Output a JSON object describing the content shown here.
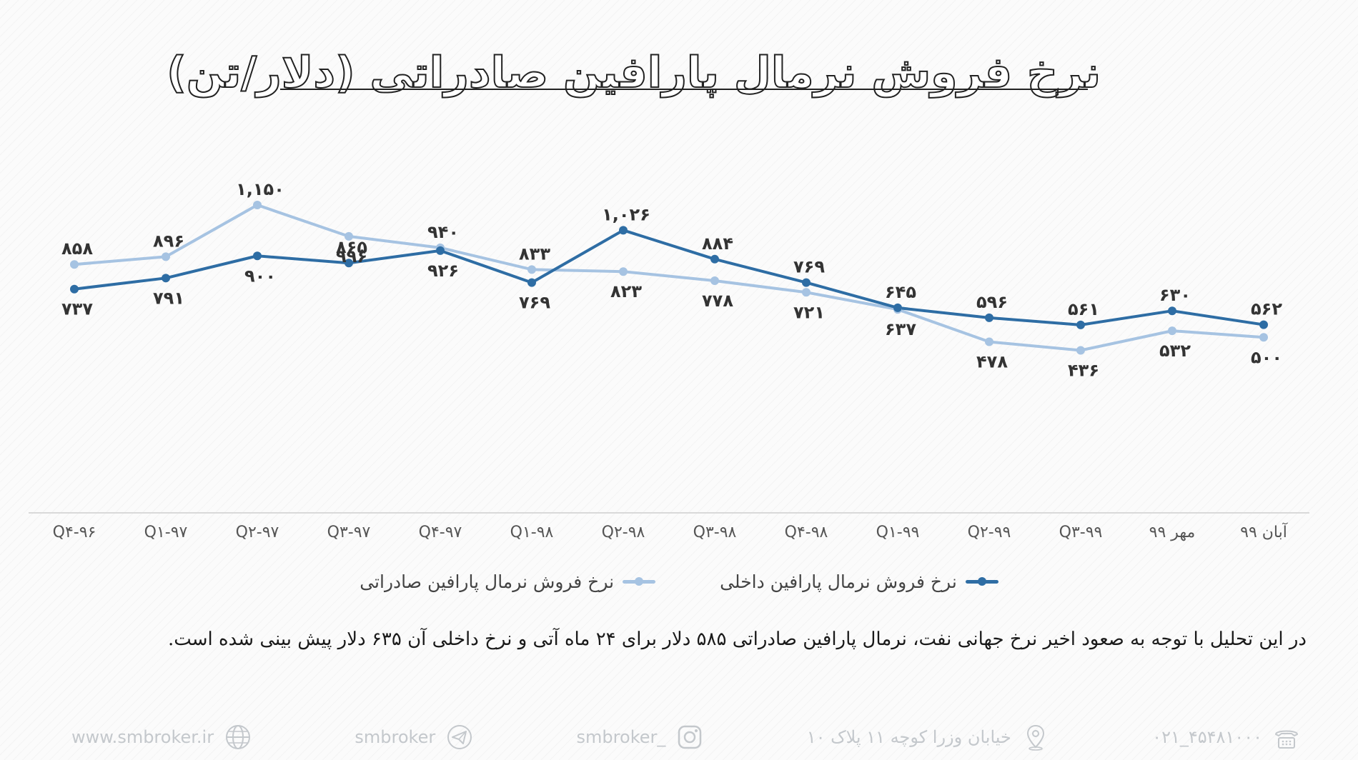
{
  "title": "نرخ فروش نرمال پارافین صادراتی (دلار/تن)",
  "chart_data": {
    "type": "line",
    "title": "نرخ فروش نرمال پارافین صادراتی (دلار/تن)",
    "categories": [
      "Q۴-۹۶",
      "Q۱-۹۷",
      "Q۲-۹۷",
      "Q۳-۹۷",
      "Q۴-۹۷",
      "Q۱-۹۸",
      "Q۲-۹۸",
      "Q۳-۹۸",
      "Q۴-۹۸",
      "Q۱-۹۹",
      "Q۲-۹۹",
      "Q۳-۹۹",
      "مهر ۹۹",
      "آبان ۹۹"
    ],
    "series": [
      {
        "name": "نرخ فروش نرمال پارافین صادراتی",
        "color": "#a6c3e2",
        "values": [
          858,
          896,
          1150,
          996,
          940,
          833,
          823,
          778,
          721,
          637,
          478,
          436,
          532,
          500
        ],
        "labels": [
          "۸۵۸",
          "۸۹۶",
          "۱,۱۵۰",
          "۹۹۶",
          "۹۴۰",
          "۸۳۳",
          "۸۲۳",
          "۷۷۸",
          "۷۲۱",
          "۶۳۷",
          "۴۷۸",
          "۴۳۶",
          "۵۳۲",
          "۵۰۰"
        ]
      },
      {
        "name": "نرخ فروش نرمال پارافین داخلی",
        "color": "#2e6da4",
        "values": [
          737,
          791,
          900,
          865,
          926,
          769,
          1026,
          884,
          769,
          645,
          596,
          561,
          630,
          562
        ],
        "labels": [
          "۷۳۷",
          "۷۹۱",
          "۹۰۰",
          "۸۶۵",
          "۹۲۶",
          "۷۶۹",
          "۱,۰۲۶",
          "۸۸۴",
          "۷۶۹",
          "۶۴۵",
          "۵۹۶",
          "۵۶۱",
          "۶۳۰",
          "۵۶۲"
        ]
      }
    ],
    "ylim": [
      0,
      1400
    ],
    "grid": false,
    "legend": "bottom"
  },
  "note": "در این تحلیل با توجه به صعود اخیر نرخ جهانی نفت، نرمال پارافین صادراتی ۵۸۵ دلار برای ۲۴ ماه آتی و نرخ  داخلی آن ۶۳۵ دلار پیش بینی شده است.",
  "footer": {
    "website": "www.smbroker.ir",
    "telegram": "smbroker",
    "instagram": "smbroker_",
    "address": "خیابان وزرا کوچه ۱۱ پلاک ۱۰",
    "phone": "۰۲۱_۴۵۴۸۱۰۰۰"
  }
}
